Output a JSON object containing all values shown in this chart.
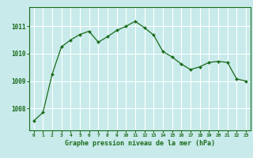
{
  "x": [
    0,
    1,
    2,
    3,
    4,
    5,
    6,
    7,
    8,
    9,
    10,
    11,
    12,
    13,
    14,
    15,
    16,
    17,
    18,
    19,
    20,
    21,
    22,
    23
  ],
  "y": [
    1007.55,
    1007.85,
    1009.25,
    1010.25,
    1010.5,
    1010.7,
    1010.82,
    1010.42,
    1010.62,
    1010.85,
    1011.0,
    1011.18,
    1010.95,
    1010.68,
    1010.08,
    1009.88,
    1009.62,
    1009.42,
    1009.52,
    1009.68,
    1009.72,
    1009.68,
    1009.08,
    1009.0
  ],
  "ylim": [
    1007.2,
    1011.7
  ],
  "yticks": [
    1008,
    1009,
    1010,
    1011
  ],
  "xticks": [
    0,
    1,
    2,
    3,
    4,
    5,
    6,
    7,
    8,
    9,
    10,
    11,
    12,
    13,
    14,
    15,
    16,
    17,
    18,
    19,
    20,
    21,
    22,
    23
  ],
  "line_color": "#1a6b1a",
  "marker_color": "#1a6b1a",
  "bg_color": "#c8eaea",
  "grid_color": "#b8d8d8",
  "xlabel": "Graphe pression niveau de la mer (hPa)",
  "xlabel_color": "#1a6b1a",
  "tick_color": "#1a6b1a",
  "spine_color": "#1a6b1a"
}
